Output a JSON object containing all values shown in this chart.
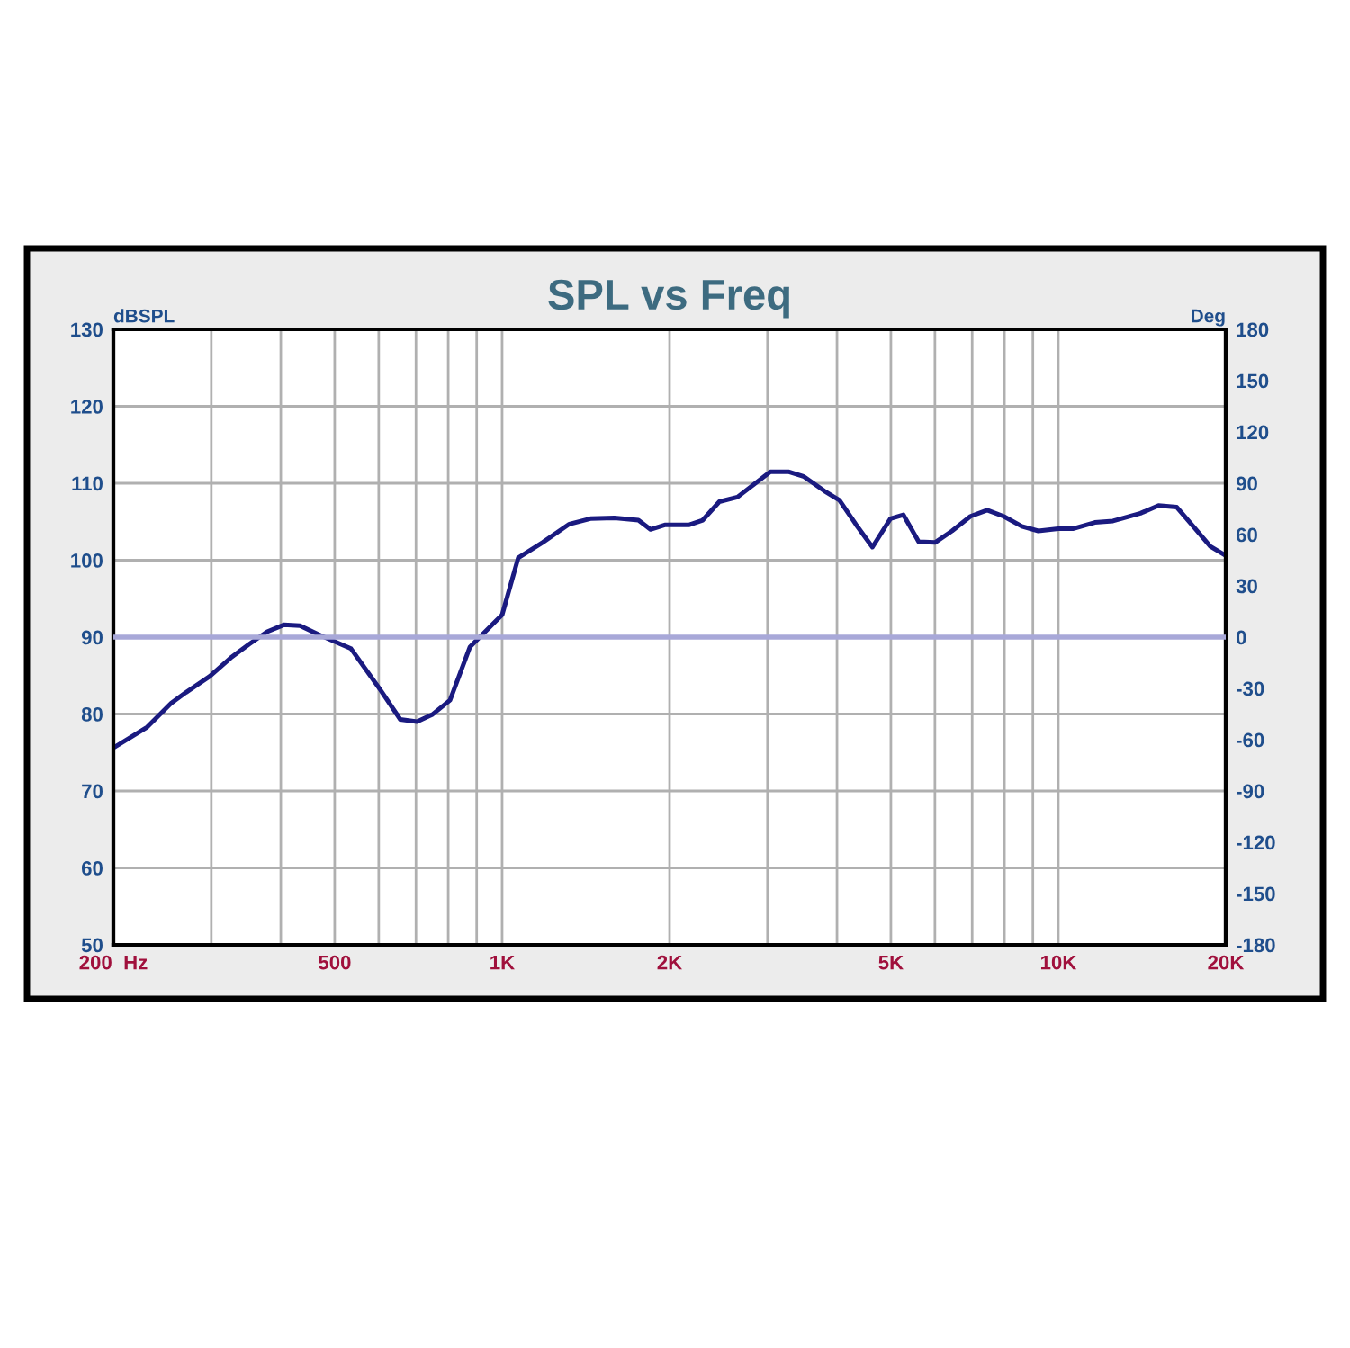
{
  "chart_data": {
    "type": "line",
    "title": "SPL vs Freq",
    "ylabel": "dBSPL",
    "y2label": "Deg",
    "log": "x",
    "grid": true,
    "marker": "none",
    "line_style": "solid",
    "xlim": [
      200,
      20000
    ],
    "xticks": [
      {
        "value": 200,
        "label": "200  Hz"
      },
      {
        "value": 300,
        "label": null
      },
      {
        "value": 400,
        "label": null
      },
      500,
      {
        "value": 600,
        "label": null
      },
      {
        "value": 700,
        "label": null
      },
      {
        "value": 800,
        "label": null
      },
      {
        "value": 900,
        "label": null
      },
      {
        "value": 1000,
        "label": "1K"
      },
      {
        "value": 2000,
        "label": "2K"
      },
      {
        "value": 3000,
        "label": null
      },
      {
        "value": 4000,
        "label": null
      },
      {
        "value": 5000,
        "label": "5K"
      },
      {
        "value": 6000,
        "label": null
      },
      {
        "value": 7000,
        "label": null
      },
      {
        "value": 8000,
        "label": null
      },
      {
        "value": 9000,
        "label": null
      },
      {
        "value": 10000,
        "label": "10K"
      },
      {
        "value": 20000,
        "label": "20K"
      }
    ],
    "ylim": [
      50,
      130
    ],
    "yticks": [
      50,
      60,
      70,
      80,
      90,
      100,
      110,
      120,
      130
    ],
    "y2lim": [
      -180,
      180
    ],
    "y2ticks": [
      -180,
      -150,
      -120,
      -90,
      -60,
      -30,
      0,
      30,
      60,
      90,
      120,
      150,
      180
    ],
    "ref_lines": [
      {
        "axis": "y2",
        "value": 0,
        "color": "#a8a8d8"
      }
    ],
    "series": [
      {
        "color": "#1a1a80",
        "x": [
          200,
          230,
          254,
          270,
          298,
          325,
          351,
          378,
          405,
          433,
          472,
          535,
          606,
          656,
          703,
          748,
          806,
          875,
          971,
          1000,
          1069,
          1182,
          1321,
          1441,
          1592,
          1758,
          1848,
          1966,
          2171,
          2294,
          2458,
          2649,
          3035,
          3270,
          3481,
          3796,
          4041,
          4331,
          4632,
          4990,
          5264,
          5610,
          6002,
          6440,
          6950,
          7450,
          7975,
          8600,
          9205,
          10000,
          10650,
          11630,
          12540,
          14050,
          15140,
          16330,
          17620,
          18760,
          20000
        ],
        "values": [
          75.6,
          78.3,
          81.4,
          82.8,
          84.9,
          87.3,
          89.1,
          90.7,
          91.6,
          91.5,
          90.2,
          88.5,
          83.0,
          79.3,
          79.0,
          79.9,
          81.8,
          88.7,
          92.0,
          92.9,
          100.3,
          102.3,
          104.7,
          105.4,
          105.5,
          105.2,
          104.0,
          104.6,
          104.6,
          105.2,
          107.6,
          108.2,
          111.5,
          111.5,
          110.9,
          109.0,
          107.8,
          104.6,
          101.7,
          105.4,
          105.9,
          102.4,
          102.3,
          103.8,
          105.7,
          106.5,
          105.7,
          104.4,
          103.8,
          104.1,
          104.1,
          104.9,
          105.1,
          106.1,
          107.1,
          106.9,
          104.1,
          101.8,
          100.6
        ]
      }
    ]
  }
}
